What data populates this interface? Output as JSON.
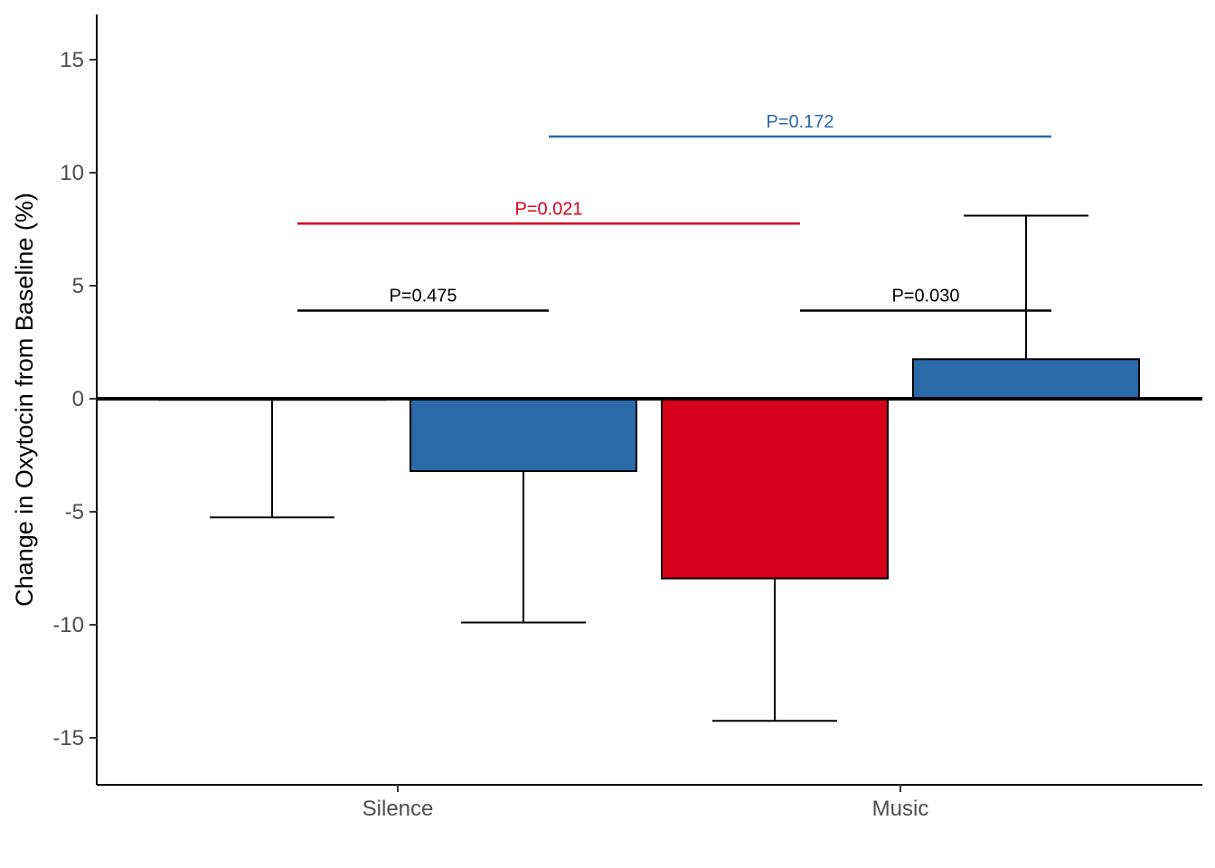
{
  "chart_data": {
    "type": "bar",
    "title": "",
    "xlabel": "",
    "ylabel": "Change in Oxytocin from Baseline (%)",
    "ylim": [
      -17,
      17
    ],
    "yticks": [
      -15,
      -10,
      -5,
      0,
      5,
      10,
      15
    ],
    "ytick_labels": [
      "-15",
      "-10",
      "-5",
      "0",
      "5",
      "10",
      "15"
    ],
    "categories": [
      "Silence",
      "Music"
    ],
    "grid": false,
    "legend": "none",
    "bars": [
      {
        "category": "Silence",
        "group_index": 0,
        "value": -0.05,
        "error_low": -5.25,
        "color": "#ffffff"
      },
      {
        "category": "Silence",
        "group_index": 1,
        "value": -3.2,
        "error_low": -9.9,
        "color": "#2b69a8"
      },
      {
        "category": "Music",
        "group_index": 0,
        "value": -7.95,
        "error_low": -14.25,
        "color": "#d7001a"
      },
      {
        "category": "Music",
        "group_index": 1,
        "value": 1.75,
        "error_high": 8.1,
        "color": "#2b69a8"
      }
    ],
    "annotations": [
      {
        "label": "P=0.475",
        "from_bar": 0,
        "to_bar": 1,
        "y": 3.9,
        "color": "#000000"
      },
      {
        "label": "P=0.030",
        "from_bar": 2,
        "to_bar": 3,
        "y": 3.9,
        "color": "#000000"
      },
      {
        "label": "P=0.021",
        "from_bar": 0,
        "to_bar": 2,
        "y": 7.75,
        "color": "#d7001a"
      },
      {
        "label": "P=0.172",
        "from_bar": 1,
        "to_bar": 3,
        "y": 11.6,
        "color": "#2b69a8"
      }
    ]
  }
}
